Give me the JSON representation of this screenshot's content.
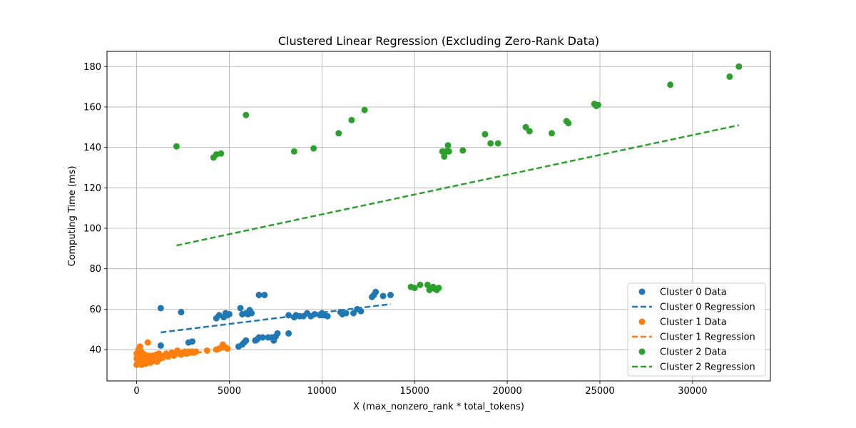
{
  "chart_data": {
    "type": "scatter",
    "title": "Clustered Linear Regression (Excluding Zero-Rank Data)",
    "xlabel": "X (max_nonzero_rank * total_tokens)",
    "ylabel": "Computing Time (ms)",
    "xlim": [
      -1600,
      34200
    ],
    "ylim": [
      24.5,
      187.5
    ],
    "xticks": [
      0,
      5000,
      10000,
      15000,
      20000,
      25000,
      30000
    ],
    "yticks": [
      40,
      60,
      80,
      100,
      120,
      140,
      160,
      180
    ],
    "grid": true,
    "legend_position": "lower-right",
    "series": [
      {
        "name": "Cluster 0 Data",
        "kind": "scatter",
        "color": "#1f77b4",
        "points": [
          [
            1300,
            60.5
          ],
          [
            1300,
            42
          ],
          [
            2400,
            58.5
          ],
          [
            2800,
            43.5
          ],
          [
            3000,
            44
          ],
          [
            4300,
            55.5
          ],
          [
            4450,
            57
          ],
          [
            4700,
            56
          ],
          [
            4900,
            57
          ],
          [
            4800,
            58
          ],
          [
            5000,
            57.5
          ],
          [
            5500,
            41.5
          ],
          [
            5700,
            42.5
          ],
          [
            5800,
            43.5
          ],
          [
            5900,
            44.5
          ],
          [
            5600,
            60.5
          ],
          [
            5700,
            57.5
          ],
          [
            5900,
            58
          ],
          [
            6100,
            59.5
          ],
          [
            6200,
            58
          ],
          [
            6000,
            57.5
          ],
          [
            6400,
            44.5
          ],
          [
            6500,
            45
          ],
          [
            6600,
            46
          ],
          [
            6800,
            46
          ],
          [
            6600,
            67
          ],
          [
            6900,
            67
          ],
          [
            7100,
            46
          ],
          [
            7300,
            46
          ],
          [
            7500,
            46.5
          ],
          [
            7600,
            48
          ],
          [
            7400,
            44.5
          ],
          [
            8200,
            48
          ],
          [
            8200,
            57
          ],
          [
            8500,
            56
          ],
          [
            8600,
            57
          ],
          [
            8800,
            56.5
          ],
          [
            9000,
            56.5
          ],
          [
            9200,
            58
          ],
          [
            9400,
            56.5
          ],
          [
            9600,
            57.5
          ],
          [
            9900,
            57
          ],
          [
            10000,
            58
          ],
          [
            10100,
            57
          ],
          [
            10300,
            56.5
          ],
          [
            11000,
            58.5
          ],
          [
            11100,
            57.5
          ],
          [
            11300,
            58
          ],
          [
            11700,
            58
          ],
          [
            11900,
            60
          ],
          [
            12100,
            59
          ],
          [
            12700,
            66
          ],
          [
            12900,
            68.5
          ],
          [
            12800,
            67
          ],
          [
            13300,
            66.5
          ],
          [
            13700,
            67
          ]
        ]
      },
      {
        "name": "Cluster 0 Regression",
        "kind": "line",
        "color": "#1f77b4",
        "points": [
          [
            1300,
            48.5
          ],
          [
            13700,
            62.5
          ]
        ]
      },
      {
        "name": "Cluster 1 Data",
        "kind": "scatter",
        "color": "#ff7f0e",
        "points": [
          [
            0,
            32.5
          ],
          [
            0,
            35.5
          ],
          [
            0,
            38
          ],
          [
            60,
            36.5
          ],
          [
            100,
            40
          ],
          [
            120,
            33.5
          ],
          [
            150,
            37
          ],
          [
            180,
            41.5
          ],
          [
            200,
            34.5
          ],
          [
            250,
            39
          ],
          [
            280,
            32.5
          ],
          [
            300,
            36
          ],
          [
            320,
            38
          ],
          [
            350,
            33.5
          ],
          [
            400,
            35
          ],
          [
            420,
            37.5
          ],
          [
            450,
            34
          ],
          [
            480,
            36.5
          ],
          [
            500,
            33
          ],
          [
            550,
            35.5
          ],
          [
            600,
            43.5
          ],
          [
            620,
            37
          ],
          [
            650,
            34
          ],
          [
            700,
            36
          ],
          [
            750,
            33.5
          ],
          [
            800,
            35
          ],
          [
            850,
            37
          ],
          [
            900,
            34.5
          ],
          [
            950,
            36
          ],
          [
            1000,
            35
          ],
          [
            1050,
            37.5
          ],
          [
            1100,
            34
          ],
          [
            1150,
            36
          ],
          [
            1200,
            38
          ],
          [
            1250,
            35.5
          ],
          [
            1300,
            37
          ],
          [
            1400,
            36
          ],
          [
            1500,
            37
          ],
          [
            1600,
            38
          ],
          [
            1700,
            36.5
          ],
          [
            1800,
            37.5
          ],
          [
            1900,
            38.5
          ],
          [
            2000,
            37
          ],
          [
            2100,
            38
          ],
          [
            2200,
            39.5
          ],
          [
            2300,
            38
          ],
          [
            2400,
            37.5
          ],
          [
            2500,
            38.5
          ],
          [
            2600,
            39
          ],
          [
            2700,
            38
          ],
          [
            2800,
            39
          ],
          [
            2900,
            38.5
          ],
          [
            3000,
            39
          ],
          [
            3100,
            38.5
          ],
          [
            3200,
            39
          ],
          [
            3800,
            39.5
          ],
          [
            4300,
            40
          ],
          [
            4450,
            40.5
          ],
          [
            4600,
            41
          ],
          [
            4650,
            42.5
          ],
          [
            4800,
            41
          ],
          [
            4900,
            40.5
          ]
        ]
      },
      {
        "name": "Cluster 1 Regression",
        "kind": "line",
        "color": "#ff7f0e",
        "points": [
          [
            0,
            34.5
          ],
          [
            4900,
            40.5
          ]
        ]
      },
      {
        "name": "Cluster 2 Data",
        "kind": "scatter",
        "color": "#2ca02c",
        "points": [
          [
            2150,
            140.5
          ],
          [
            4150,
            135
          ],
          [
            4300,
            136.5
          ],
          [
            4550,
            137
          ],
          [
            5900,
            156
          ],
          [
            8500,
            138
          ],
          [
            9550,
            139.5
          ],
          [
            10900,
            147
          ],
          [
            11600,
            153.5
          ],
          [
            12300,
            158.5
          ],
          [
            14800,
            71
          ],
          [
            15000,
            70.5
          ],
          [
            15300,
            72
          ],
          [
            15700,
            72
          ],
          [
            15800,
            69.5
          ],
          [
            15900,
            70.5
          ],
          [
            16000,
            71
          ],
          [
            16100,
            70
          ],
          [
            16200,
            69.5
          ],
          [
            16300,
            70.5
          ],
          [
            16500,
            138
          ],
          [
            16600,
            135.5
          ],
          [
            16700,
            138
          ],
          [
            16800,
            141
          ],
          [
            16850,
            138
          ],
          [
            17600,
            138.5
          ],
          [
            18800,
            146.5
          ],
          [
            19100,
            142
          ],
          [
            19500,
            142
          ],
          [
            21000,
            150
          ],
          [
            21200,
            148
          ],
          [
            22400,
            147
          ],
          [
            23200,
            153
          ],
          [
            23300,
            152
          ],
          [
            24700,
            161.5
          ],
          [
            24800,
            160.5
          ],
          [
            24900,
            161
          ],
          [
            28800,
            171
          ],
          [
            32000,
            175
          ],
          [
            32500,
            180
          ]
        ]
      },
      {
        "name": "Cluster 2 Regression",
        "kind": "line",
        "color": "#2ca02c",
        "points": [
          [
            2150,
            91.5
          ],
          [
            32500,
            151
          ]
        ]
      }
    ]
  }
}
